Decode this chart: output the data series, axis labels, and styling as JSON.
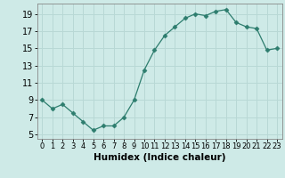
{
  "x": [
    0,
    1,
    2,
    3,
    4,
    5,
    6,
    7,
    8,
    9,
    10,
    11,
    12,
    13,
    14,
    15,
    16,
    17,
    18,
    19,
    20,
    21,
    22,
    23
  ],
  "y": [
    9,
    8,
    8.5,
    7.5,
    6.5,
    5.5,
    6,
    6,
    7,
    9,
    12.5,
    14.8,
    16.5,
    17.5,
    18.5,
    19,
    18.8,
    19.3,
    19.5,
    18,
    17.5,
    17.3,
    14.8,
    15
  ],
  "line_color": "#2d7d6e",
  "marker": "D",
  "marker_size": 2.5,
  "bg_color": "#ceeae7",
  "grid_color": "#b8d8d5",
  "xlabel": "Humidex (Indice chaleur)",
  "yticks": [
    5,
    7,
    9,
    11,
    13,
    15,
    17,
    19
  ],
  "xticks": [
    0,
    1,
    2,
    3,
    4,
    5,
    6,
    7,
    8,
    9,
    10,
    11,
    12,
    13,
    14,
    15,
    16,
    17,
    18,
    19,
    20,
    21,
    22,
    23
  ],
  "xlim": [
    -0.5,
    23.5
  ],
  "ylim": [
    4.5,
    20.2
  ],
  "x_tick_fontsize": 6,
  "y_tick_fontsize": 7,
  "label_fontsize": 7.5
}
